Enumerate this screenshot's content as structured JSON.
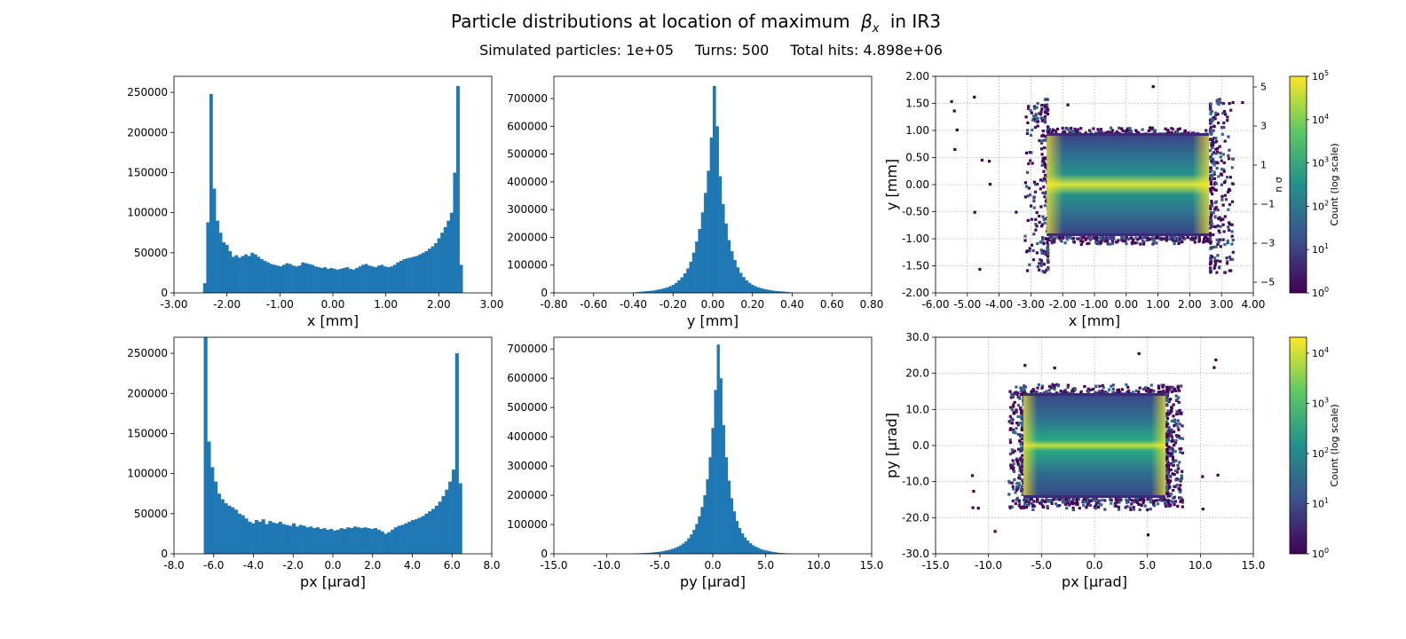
{
  "figure": {
    "title_prefix": "Particle distributions at location of maximum",
    "title_beta": "β",
    "title_beta_sub": "x",
    "title_suffix": "in IR3",
    "stats": {
      "particles_label": "Simulated particles:",
      "particles_value": "1e+05",
      "turns_label": "Turns:",
      "turns_value": "500",
      "hits_label": "Total hits:",
      "hits_value": "4.898e+06"
    },
    "colors": {
      "bar": "#1f77b4",
      "grid": "#b0b0b0",
      "viridis": [
        "#440154",
        "#3b528b",
        "#21918c",
        "#5ec962",
        "#fde725"
      ]
    }
  },
  "chart_data": [
    {
      "id": "hist-x",
      "type": "bar",
      "xlabel": "x [mm]",
      "xlim": [
        -3.0,
        3.0
      ],
      "ylim": [
        0,
        270000
      ],
      "xticks": [
        "-3.00",
        "-2.00",
        "-1.00",
        "0.00",
        "1.00",
        "2.00",
        "3.00"
      ],
      "yticks": [
        "0",
        "50000",
        "100000",
        "150000",
        "200000",
        "250000"
      ],
      "bin_range": [
        -2.45,
        2.45
      ],
      "values": [
        12000,
        88000,
        248000,
        130000,
        90000,
        75000,
        63000,
        60000,
        52000,
        45000,
        47000,
        44000,
        46000,
        48000,
        46000,
        50000,
        48000,
        45000,
        42000,
        40000,
        38000,
        36000,
        35000,
        34000,
        33000,
        35000,
        37000,
        36000,
        34000,
        33000,
        34000,
        38000,
        37000,
        36000,
        35000,
        33000,
        32000,
        31000,
        32000,
        30000,
        31000,
        30000,
        29000,
        30000,
        31000,
        32000,
        30000,
        29000,
        31000,
        33000,
        35000,
        36000,
        34000,
        33000,
        32000,
        34000,
        35000,
        33000,
        32000,
        33000,
        35000,
        38000,
        40000,
        42000,
        43000,
        44000,
        45000,
        46000,
        48000,
        50000,
        52000,
        55000,
        58000,
        62000,
        68000,
        75000,
        82000,
        90000,
        100000,
        150000,
        258000,
        35000
      ]
    },
    {
      "id": "hist-y",
      "type": "bar",
      "xlabel": "y [mm]",
      "xlim": [
        -0.8,
        0.8
      ],
      "ylim": [
        0,
        780000
      ],
      "xticks": [
        "-0.80",
        "-0.60",
        "-0.40",
        "-0.20",
        "0.00",
        "0.20",
        "0.40",
        "0.60",
        "0.80"
      ],
      "yticks": [
        "0",
        "100000",
        "200000",
        "300000",
        "400000",
        "500000",
        "600000",
        "700000"
      ],
      "bin_range": [
        -0.4,
        0.4
      ],
      "values": [
        2000,
        3000,
        4000,
        5000,
        6000,
        7000,
        8000,
        10000,
        12000,
        14000,
        17000,
        20000,
        24000,
        29000,
        36000,
        45000,
        56000,
        70000,
        88000,
        112000,
        145000,
        185000,
        230000,
        290000,
        360000,
        440000,
        560000,
        745000,
        600000,
        420000,
        320000,
        250000,
        190000,
        150000,
        118000,
        92000,
        72000,
        57000,
        45000,
        36000,
        29000,
        24000,
        20000,
        17000,
        14000,
        12000,
        10000,
        8000,
        7000,
        6000,
        5000,
        4000,
        3000,
        2000
      ]
    },
    {
      "id": "hist-px",
      "type": "bar",
      "xlabel": "px [μrad]",
      "xlim": [
        -8.0,
        8.0
      ],
      "ylim": [
        0,
        270000
      ],
      "xticks": [
        "-8.0",
        "-6.0",
        "-4.0",
        "-2.0",
        "0.0",
        "2.0",
        "4.0",
        "6.0",
        "8.0"
      ],
      "yticks": [
        "0",
        "50000",
        "100000",
        "150000",
        "200000",
        "250000"
      ],
      "bin_range": [
        -6.5,
        6.5
      ],
      "values": [
        270000,
        140000,
        108000,
        90000,
        75000,
        68000,
        63000,
        60000,
        58000,
        55000,
        50000,
        48000,
        44000,
        40000,
        38000,
        42000,
        40000,
        43000,
        37000,
        41000,
        39000,
        38000,
        40000,
        37000,
        36000,
        35000,
        38000,
        34000,
        36000,
        35000,
        33000,
        34000,
        32000,
        33000,
        31000,
        32000,
        30000,
        31000,
        29000,
        30000,
        32000,
        31000,
        33000,
        32000,
        34000,
        33000,
        32000,
        33000,
        32000,
        31000,
        32000,
        30000,
        28000,
        25000,
        27000,
        30000,
        33000,
        35000,
        36000,
        38000,
        40000,
        42000,
        43000,
        45000,
        47000,
        50000,
        53000,
        56000,
        60000,
        65000,
        72000,
        80000,
        90000,
        105000,
        250000,
        88000
      ]
    },
    {
      "id": "hist-py",
      "type": "bar",
      "xlabel": "py [μrad]",
      "xlim": [
        -15.0,
        15.0
      ],
      "ylim": [
        0,
        740000
      ],
      "xticks": [
        "-15.0",
        "-10.0",
        "-5.0",
        "0.0",
        "5.0",
        "10.0",
        "15.0"
      ],
      "yticks": [
        "0",
        "100000",
        "200000",
        "300000",
        "400000",
        "500000",
        "600000",
        "700000"
      ],
      "bin_range": [
        -7.5,
        7.5
      ],
      "values": [
        1000,
        1500,
        2000,
        2500,
        3000,
        3500,
        4000,
        5000,
        6000,
        7000,
        8000,
        10000,
        12000,
        14000,
        17000,
        20000,
        24000,
        29000,
        35000,
        43000,
        53000,
        66000,
        82000,
        102000,
        128000,
        160000,
        200000,
        255000,
        330000,
        430000,
        560000,
        715000,
        600000,
        440000,
        330000,
        250000,
        190000,
        145000,
        112000,
        88000,
        70000,
        56000,
        45000,
        36000,
        29000,
        24000,
        20000,
        16000,
        13000,
        11000,
        9000,
        7000,
        5500,
        4000,
        3000,
        2500,
        2000,
        1500,
        1000
      ]
    },
    {
      "id": "heat-xy",
      "type": "heatmap",
      "xlabel": "x [mm]",
      "ylabel": "y [mm]",
      "xlim": [
        -6.0,
        4.0
      ],
      "ylim": [
        -2.0,
        2.0
      ],
      "xticks": [
        "-6.00",
        "-5.00",
        "-4.00",
        "-3.00",
        "-2.00",
        "-1.00",
        "0.00",
        "1.00",
        "2.00",
        "3.00",
        "4.00"
      ],
      "yticks": [
        "-2.00",
        "-1.50",
        "-1.00",
        "-0.50",
        "0.00",
        "0.50",
        "1.00",
        "1.50",
        "2.00"
      ],
      "core": {
        "x": [
          -2.5,
          2.6
        ],
        "y": [
          -0.95,
          0.95
        ]
      },
      "sec_axis_label": "n σ",
      "sec_ticks": [
        "5",
        "3",
        "1",
        "−1",
        "−3",
        "−5"
      ],
      "colorbar": {
        "label": "Count (log scale)",
        "ticks": [
          {
            "base": "10",
            "exp": "5"
          },
          {
            "base": "10",
            "exp": "4"
          },
          {
            "base": "10",
            "exp": "3"
          },
          {
            "base": "10",
            "exp": "2"
          },
          {
            "base": "10",
            "exp": "1"
          },
          {
            "base": "10",
            "exp": "0"
          }
        ]
      }
    },
    {
      "id": "heat-pxpy",
      "type": "heatmap",
      "xlabel": "px [μrad]",
      "ylabel": "py [μrad]",
      "xlim": [
        -15.0,
        15.0
      ],
      "ylim": [
        -30.0,
        30.0
      ],
      "xticks": [
        "-15.0",
        "-10.0",
        "-5.0",
        "0.0",
        "5.0",
        "10.0",
        "15.0"
      ],
      "yticks": [
        "-30.0",
        "-20.0",
        "-10.0",
        "0.0",
        "10.0",
        "20.0",
        "30.0"
      ],
      "core": {
        "x": [
          -6.7,
          6.7
        ],
        "y": [
          -14.5,
          14.5
        ]
      },
      "colorbar": {
        "label": "Count (log scale)",
        "ticks": [
          {
            "base": "10",
            "exp": "4"
          },
          {
            "base": "10",
            "exp": "3"
          },
          {
            "base": "10",
            "exp": "2"
          },
          {
            "base": "10",
            "exp": "1"
          },
          {
            "base": "10",
            "exp": "0"
          }
        ]
      }
    }
  ]
}
